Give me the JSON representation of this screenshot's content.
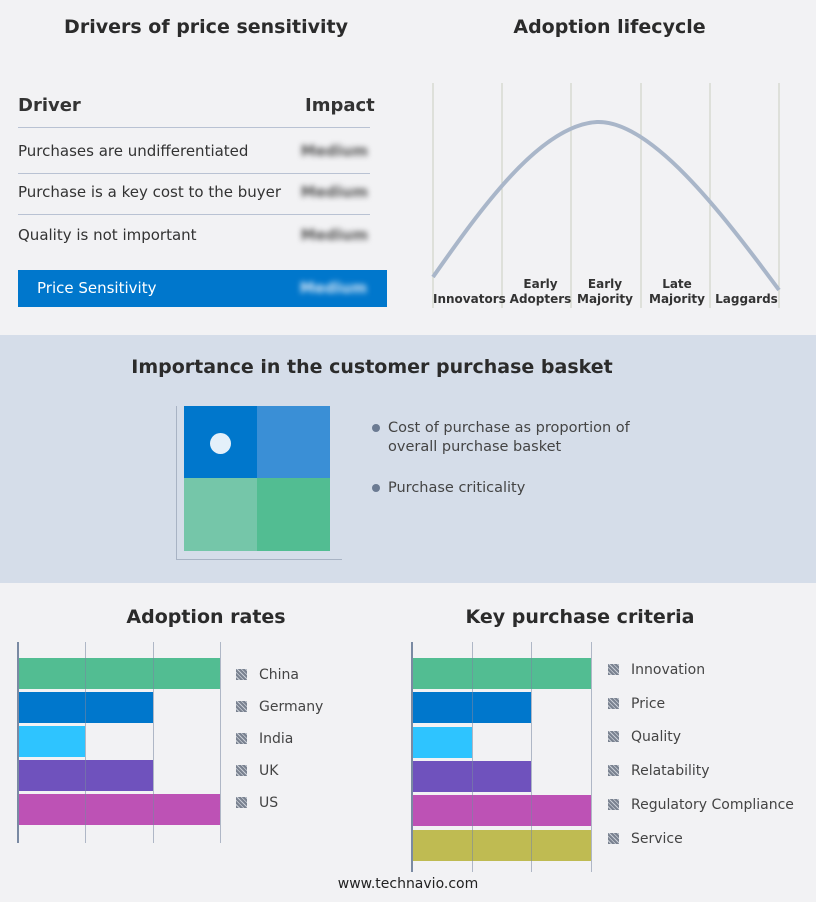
{
  "drivers": {
    "title": "Drivers of price sensitivity",
    "col_driver": "Driver",
    "col_impact": "Impact",
    "rows": [
      {
        "driver": "Purchases are undifferentiated",
        "impact": "Medium"
      },
      {
        "driver": "Purchase is a key cost to the buyer",
        "impact": "Medium"
      },
      {
        "driver": "Quality is not important",
        "impact": "Medium"
      }
    ],
    "summary": {
      "label": "Price Sensitivity",
      "impact": "Medium"
    }
  },
  "lifecycle": {
    "title": "Adoption lifecycle",
    "stages": [
      "Innovators",
      "Early Adopters",
      "Early Majority",
      "Late Majority",
      "Laggards"
    ]
  },
  "basket": {
    "title": "Importance in the customer purchase basket",
    "legend": [
      "Cost of purchase as proportion of overall purchase basket",
      "Purchase criticality"
    ],
    "colors": [
      "#0077cc",
      "#3a8fd6",
      "#75c6a9",
      "#52bd92"
    ]
  },
  "chart_data": [
    {
      "type": "bar",
      "title": "Adoption rates",
      "categories": [
        "China",
        "Germany",
        "India",
        "UK",
        "US"
      ],
      "values": [
        3,
        2,
        1,
        2,
        3
      ],
      "xlim": [
        0,
        3
      ],
      "colors": [
        "#52bd92",
        "#0077cc",
        "#2ec4ff",
        "#6f52bd",
        "#bd52b5"
      ],
      "grid": true,
      "legend": "right"
    },
    {
      "type": "bar",
      "title": "Key purchase criteria",
      "categories": [
        "Innovation",
        "Price",
        "Quality",
        "Relatability",
        "Regulatory Compliance",
        "Service"
      ],
      "values": [
        3,
        2,
        1,
        2,
        3,
        3
      ],
      "xlim": [
        0,
        3
      ],
      "colors": [
        "#52bd92",
        "#0077cc",
        "#2ec4ff",
        "#6f52bd",
        "#bd52b5",
        "#bfbb52"
      ],
      "grid": true,
      "legend": "right"
    }
  ],
  "footer": "www.technavio.com"
}
